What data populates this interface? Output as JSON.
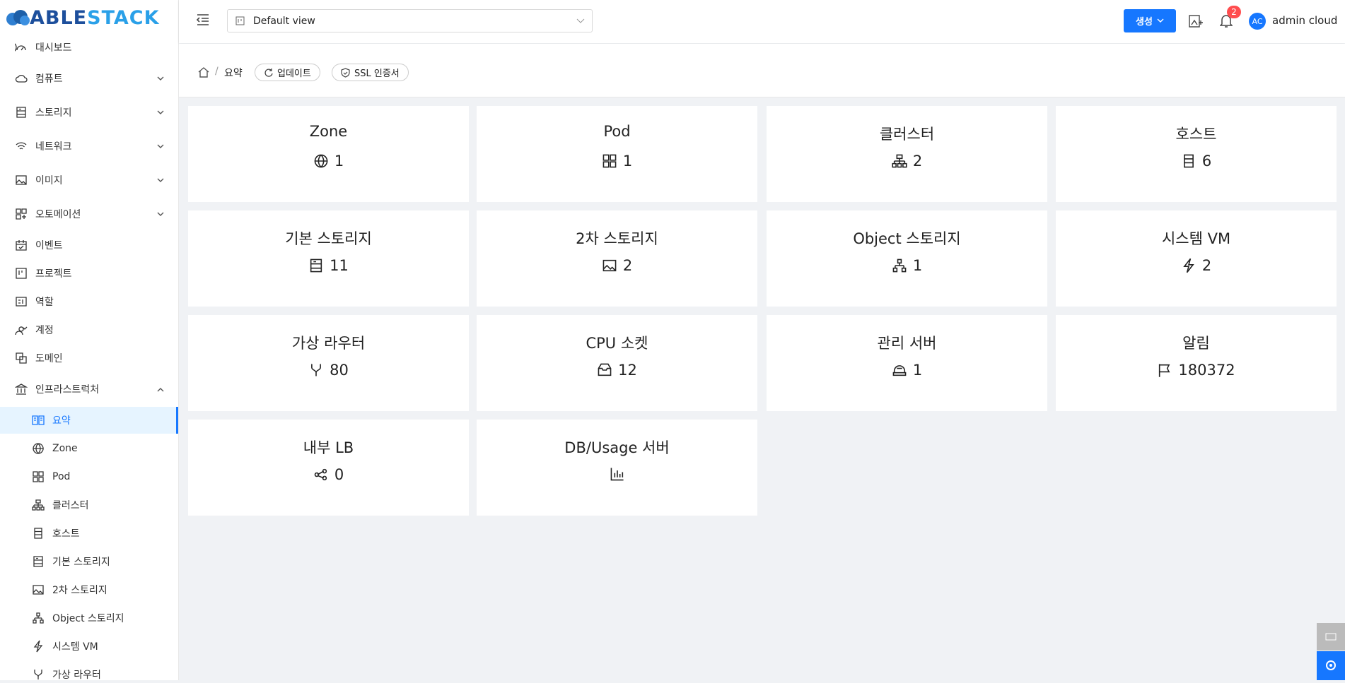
{
  "logo": {
    "left": "ABLE",
    "right": "STACK"
  },
  "header": {
    "view": "Default view",
    "create": "생성",
    "notifications": "2",
    "avatar": "AC",
    "user": "admin cloud"
  },
  "breadcrumb": {
    "current": "요약",
    "buttons": [
      "업데이트",
      "SSL 인증서"
    ]
  },
  "sidebar": {
    "items": [
      {
        "label": "대시보드"
      },
      {
        "label": "컴퓨트",
        "expand": "down"
      },
      {
        "label": "스토리지",
        "expand": "down"
      },
      {
        "label": "네트워크",
        "expand": "down"
      },
      {
        "label": "이미지",
        "expand": "down"
      },
      {
        "label": "오토메이션",
        "expand": "down"
      },
      {
        "label": "이벤트"
      },
      {
        "label": "프로젝트"
      },
      {
        "label": "역할"
      },
      {
        "label": "계정"
      },
      {
        "label": "도메인"
      },
      {
        "label": "인프라스트럭처",
        "expand": "up"
      }
    ],
    "children": [
      {
        "label": "요약",
        "active": true
      },
      {
        "label": "Zone"
      },
      {
        "label": "Pod"
      },
      {
        "label": "클러스터"
      },
      {
        "label": "호스트"
      },
      {
        "label": "기본 스토리지"
      },
      {
        "label": "2차 스토리지"
      },
      {
        "label": "Object 스토리지"
      },
      {
        "label": "시스템 VM"
      },
      {
        "label": "가상 라우터"
      }
    ]
  },
  "cards": [
    {
      "title": "Zone",
      "value": 1
    },
    {
      "title": "Pod",
      "value": 1
    },
    {
      "title": "클러스터",
      "value": 2
    },
    {
      "title": "호스트",
      "value": 6
    },
    {
      "title": "기본 스토리지",
      "value": 11
    },
    {
      "title": "2차 스토리지",
      "value": 2
    },
    {
      "title": "Object 스토리지",
      "value": 1
    },
    {
      "title": "시스템 VM",
      "value": 2
    },
    {
      "title": "가상 라우터",
      "value": 80
    },
    {
      "title": "CPU 소켓",
      "value": 12
    },
    {
      "title": "관리 서버",
      "value": 1
    },
    {
      "title": "알림",
      "value": 180372
    },
    {
      "title": "내부 LB",
      "value": 0
    },
    {
      "title": "DB/Usage 서버"
    }
  ]
}
